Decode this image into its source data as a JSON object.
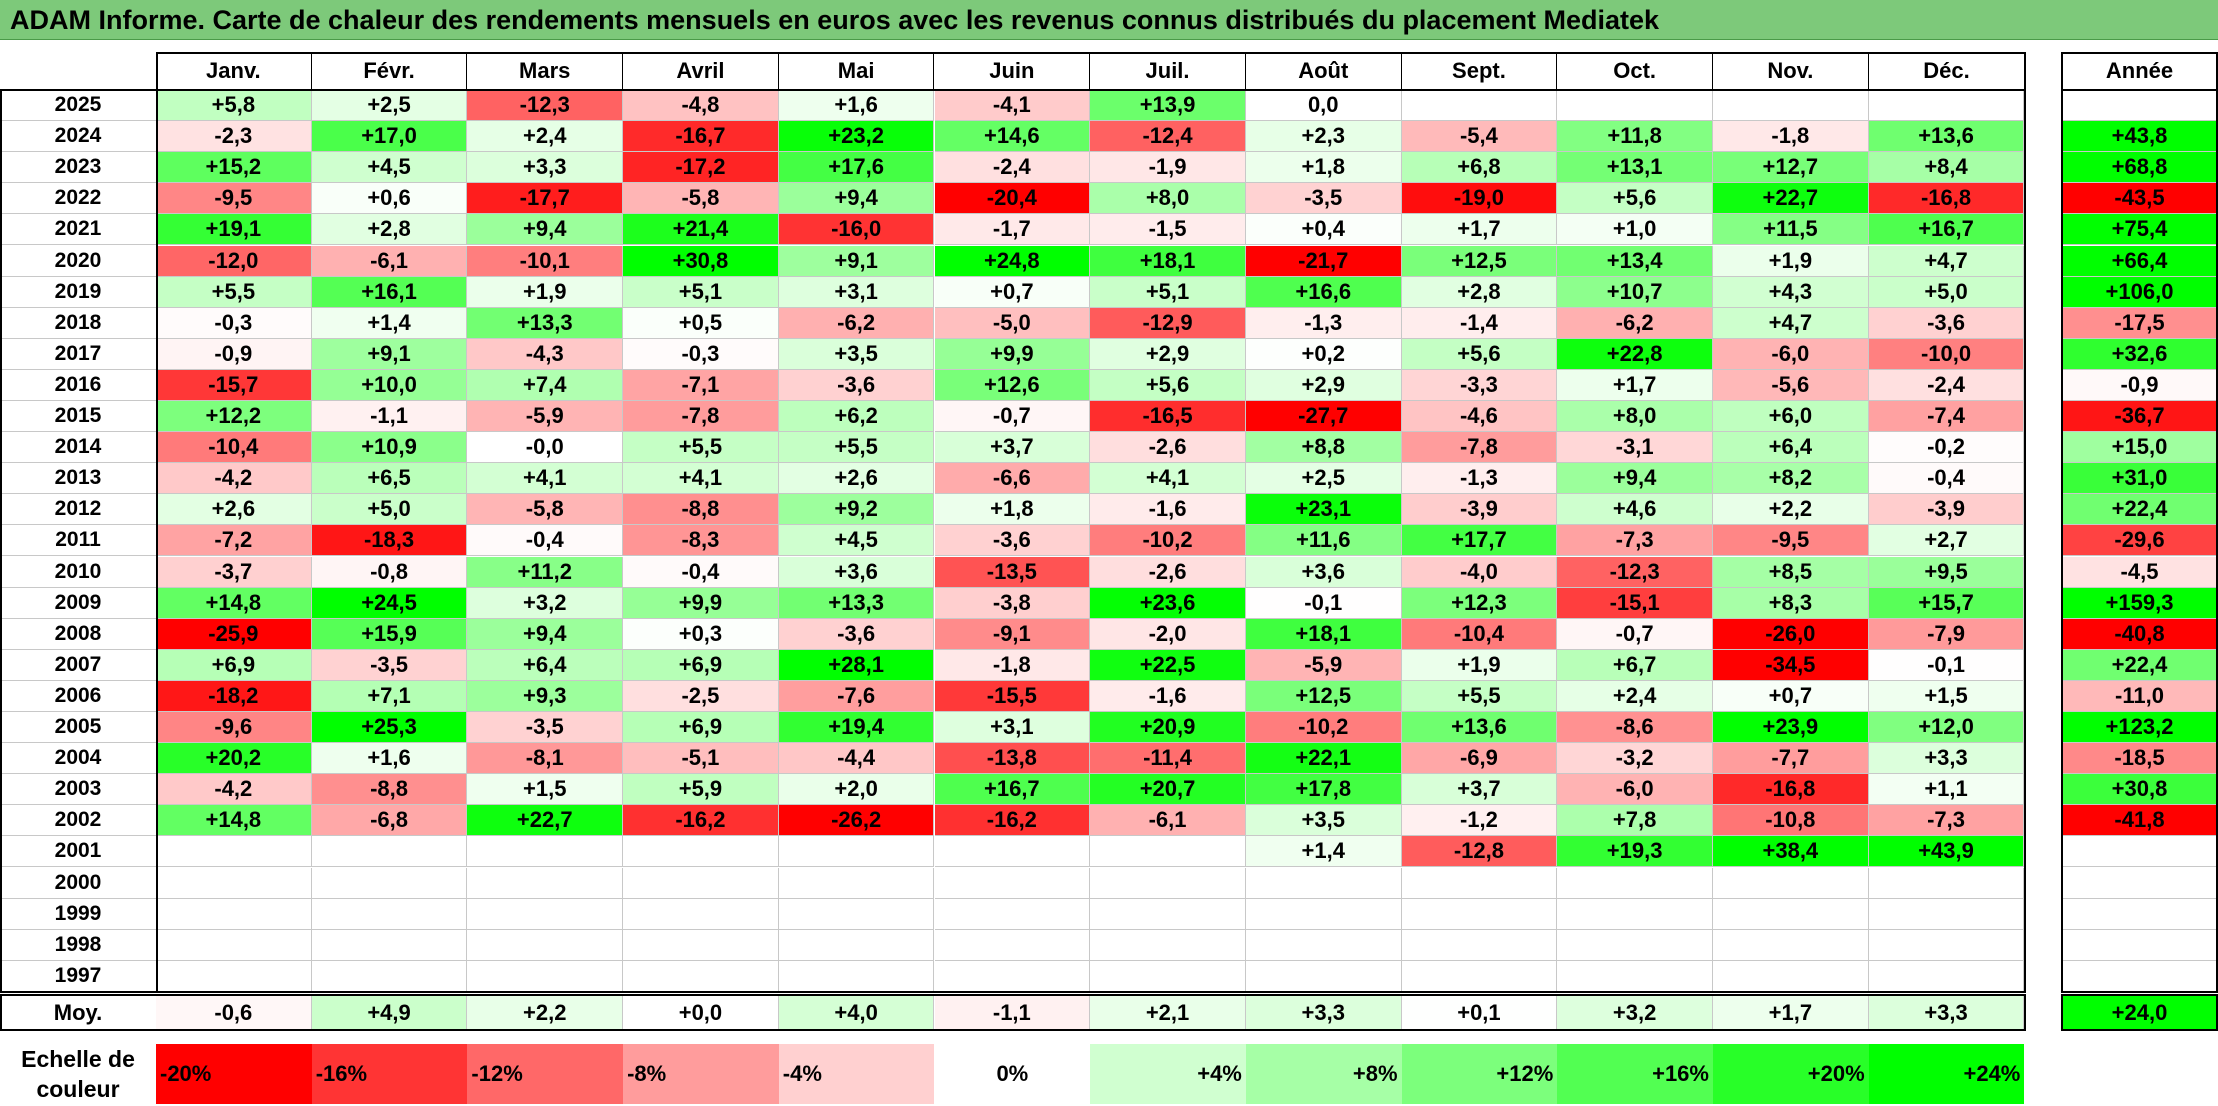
{
  "title": "ADAM Informe. Carte de chaleur des rendements mensuels en euros avec les revenus connus distribués du placement Mediatek",
  "chart_data": {
    "type": "heatmap",
    "columns": [
      "Janv.",
      "Févr.",
      "Mars",
      "Avril",
      "Mai",
      "Juin",
      "Juil.",
      "Août",
      "Sept.",
      "Oct.",
      "Nov.",
      "Déc."
    ],
    "year_header": "Année",
    "rows": [
      {
        "year": "2025",
        "months": [
          "+5,8",
          "+2,5",
          "-12,3",
          "-4,8",
          "+1,6",
          "-4,1",
          "+13,9",
          "0,0",
          "",
          "",
          "",
          ""
        ],
        "annual": ""
      },
      {
        "year": "2024",
        "months": [
          "-2,3",
          "+17,0",
          "+2,4",
          "-16,7",
          "+23,2",
          "+14,6",
          "-12,4",
          "+2,3",
          "-5,4",
          "+11,8",
          "-1,8",
          "+13,6"
        ],
        "annual": "+43,8"
      },
      {
        "year": "2023",
        "months": [
          "+15,2",
          "+4,5",
          "+3,3",
          "-17,2",
          "+17,6",
          "-2,4",
          "-1,9",
          "+1,8",
          "+6,8",
          "+13,1",
          "+12,7",
          "+8,4"
        ],
        "annual": "+68,8"
      },
      {
        "year": "2022",
        "months": [
          "-9,5",
          "+0,6",
          "-17,7",
          "-5,8",
          "+9,4",
          "-20,4",
          "+8,0",
          "-3,5",
          "-19,0",
          "+5,6",
          "+22,7",
          "-16,8"
        ],
        "annual": "-43,5"
      },
      {
        "year": "2021",
        "months": [
          "+19,1",
          "+2,8",
          "+9,4",
          "+21,4",
          "-16,0",
          "-1,7",
          "-1,5",
          "+0,4",
          "+1,7",
          "+1,0",
          "+11,5",
          "+16,7"
        ],
        "annual": "+75,4"
      },
      {
        "year": "2020",
        "months": [
          "-12,0",
          "-6,1",
          "-10,1",
          "+30,8",
          "+9,1",
          "+24,8",
          "+18,1",
          "-21,7",
          "+12,5",
          "+13,4",
          "+1,9",
          "+4,7"
        ],
        "annual": "+66,4"
      },
      {
        "year": "2019",
        "months": [
          "+5,5",
          "+16,1",
          "+1,9",
          "+5,1",
          "+3,1",
          "+0,7",
          "+5,1",
          "+16,6",
          "+2,8",
          "+10,7",
          "+4,3",
          "+5,0"
        ],
        "annual": "+106,0"
      },
      {
        "year": "2018",
        "months": [
          "-0,3",
          "+1,4",
          "+13,3",
          "+0,5",
          "-6,2",
          "-5,0",
          "-12,9",
          "-1,3",
          "-1,4",
          "-6,2",
          "+4,7",
          "-3,6"
        ],
        "annual": "-17,5"
      },
      {
        "year": "2017",
        "months": [
          "-0,9",
          "+9,1",
          "-4,3",
          "-0,3",
          "+3,5",
          "+9,9",
          "+2,9",
          "+0,2",
          "+5,6",
          "+22,8",
          "-6,0",
          "-10,0"
        ],
        "annual": "+32,6"
      },
      {
        "year": "2016",
        "months": [
          "-15,7",
          "+10,0",
          "+7,4",
          "-7,1",
          "-3,6",
          "+12,6",
          "+5,6",
          "+2,9",
          "-3,3",
          "+1,7",
          "-5,6",
          "-2,4"
        ],
        "annual": "-0,9"
      },
      {
        "year": "2015",
        "months": [
          "+12,2",
          "-1,1",
          "-5,9",
          "-7,8",
          "+6,2",
          "-0,7",
          "-16,5",
          "-27,7",
          "-4,6",
          "+8,0",
          "+6,0",
          "-7,4"
        ],
        "annual": "-36,7"
      },
      {
        "year": "2014",
        "months": [
          "-10,4",
          "+10,9",
          "-0,0",
          "+5,5",
          "+5,5",
          "+3,7",
          "-2,6",
          "+8,8",
          "-7,8",
          "-3,1",
          "+6,4",
          "-0,2"
        ],
        "annual": "+15,0"
      },
      {
        "year": "2013",
        "months": [
          "-4,2",
          "+6,5",
          "+4,1",
          "+4,1",
          "+2,6",
          "-6,6",
          "+4,1",
          "+2,5",
          "-1,3",
          "+9,4",
          "+8,2",
          "-0,4"
        ],
        "annual": "+31,0"
      },
      {
        "year": "2012",
        "months": [
          "+2,6",
          "+5,0",
          "-5,8",
          "-8,8",
          "+9,2",
          "+1,8",
          "-1,6",
          "+23,1",
          "-3,9",
          "+4,6",
          "+2,2",
          "-3,9"
        ],
        "annual": "+22,4"
      },
      {
        "year": "2011",
        "months": [
          "-7,2",
          "-18,3",
          "-0,4",
          "-8,3",
          "+4,5",
          "-3,6",
          "-10,2",
          "+11,6",
          "+17,7",
          "-7,3",
          "-9,5",
          "+2,7"
        ],
        "annual": "-29,6"
      },
      {
        "year": "2010",
        "months": [
          "-3,7",
          "-0,8",
          "+11,2",
          "-0,4",
          "+3,6",
          "-13,5",
          "-2,6",
          "+3,6",
          "-4,0",
          "-12,3",
          "+8,5",
          "+9,5"
        ],
        "annual": "-4,5"
      },
      {
        "year": "2009",
        "months": [
          "+14,8",
          "+24,5",
          "+3,2",
          "+9,9",
          "+13,3",
          "-3,8",
          "+23,6",
          "-0,1",
          "+12,3",
          "-15,1",
          "+8,3",
          "+15,7"
        ],
        "annual": "+159,3"
      },
      {
        "year": "2008",
        "months": [
          "-25,9",
          "+15,9",
          "+9,4",
          "+0,3",
          "-3,6",
          "-9,1",
          "-2,0",
          "+18,1",
          "-10,4",
          "-0,7",
          "-26,0",
          "-7,9"
        ],
        "annual": "-40,8"
      },
      {
        "year": "2007",
        "months": [
          "+6,9",
          "-3,5",
          "+6,4",
          "+6,9",
          "+28,1",
          "-1,8",
          "+22,5",
          "-5,9",
          "+1,9",
          "+6,7",
          "-34,5",
          "-0,1"
        ],
        "annual": "+22,4"
      },
      {
        "year": "2006",
        "months": [
          "-18,2",
          "+7,1",
          "+9,3",
          "-2,5",
          "-7,6",
          "-15,5",
          "-1,6",
          "+12,5",
          "+5,5",
          "+2,4",
          "+0,7",
          "+1,5"
        ],
        "annual": "-11,0"
      },
      {
        "year": "2005",
        "months": [
          "-9,6",
          "+25,3",
          "-3,5",
          "+6,9",
          "+19,4",
          "+3,1",
          "+20,9",
          "-10,2",
          "+13,6",
          "-8,6",
          "+23,9",
          "+12,0"
        ],
        "annual": "+123,2"
      },
      {
        "year": "2004",
        "months": [
          "+20,2",
          "+1,6",
          "-8,1",
          "-5,1",
          "-4,4",
          "-13,8",
          "-11,4",
          "+22,1",
          "-6,9",
          "-3,2",
          "-7,7",
          "+3,3"
        ],
        "annual": "-18,5"
      },
      {
        "year": "2003",
        "months": [
          "-4,2",
          "-8,8",
          "+1,5",
          "+5,9",
          "+2,0",
          "+16,7",
          "+20,7",
          "+17,8",
          "+3,7",
          "-6,0",
          "-16,8",
          "+1,1"
        ],
        "annual": "+30,8"
      },
      {
        "year": "2002",
        "months": [
          "+14,8",
          "-6,8",
          "+22,7",
          "-16,2",
          "-26,2",
          "-16,2",
          "-6,1",
          "+3,5",
          "-1,2",
          "+7,8",
          "-10,8",
          "-7,3"
        ],
        "annual": "-41,8"
      },
      {
        "year": "2001",
        "months": [
          "",
          "",
          "",
          "",
          "",
          "",
          "",
          "+1,4",
          "-12,8",
          "+19,3",
          "+38,4",
          "+43,9"
        ],
        "annual": ""
      },
      {
        "year": "2000",
        "months": [
          "",
          "",
          "",
          "",
          "",
          "",
          "",
          "",
          "",
          "",
          "",
          ""
        ],
        "annual": ""
      },
      {
        "year": "1999",
        "months": [
          "",
          "",
          "",
          "",
          "",
          "",
          "",
          "",
          "",
          "",
          "",
          ""
        ],
        "annual": ""
      },
      {
        "year": "1998",
        "months": [
          "",
          "",
          "",
          "",
          "",
          "",
          "",
          "",
          "",
          "",
          "",
          ""
        ],
        "annual": ""
      },
      {
        "year": "1997",
        "months": [
          "",
          "",
          "",
          "",
          "",
          "",
          "",
          "",
          "",
          "",
          "",
          ""
        ],
        "annual": ""
      }
    ],
    "average": {
      "label": "Moy.",
      "months": [
        "-0,6",
        "+4,9",
        "+2,2",
        "+0,0",
        "+4,0",
        "-1,1",
        "+2,1",
        "+3,3",
        "+0,1",
        "+3,2",
        "+1,7",
        "+3,3"
      ],
      "annual": "+24,0"
    },
    "color_scale": {
      "label": "Echelle de couleur",
      "steps": [
        "-20%",
        "-16%",
        "-12%",
        "-8%",
        "-4%",
        "0%",
        "+4%",
        "+8%",
        "+12%",
        "+16%",
        "+20%",
        "+24%"
      ],
      "colors": [
        "#ff0000",
        "#ff3434",
        "#ff6868",
        "#ff9c9c",
        "#ffd0d0",
        "#ffffff",
        "#d0ffd0",
        "#a6ffa6",
        "#7cff7c",
        "#52ff52",
        "#28ff28",
        "#00ff00"
      ]
    },
    "colors": {
      "negative_max": "#ff0000",
      "neutral": "#ffffff",
      "positive_max": "#00ff00",
      "title_bar": "#7dc97a"
    }
  }
}
